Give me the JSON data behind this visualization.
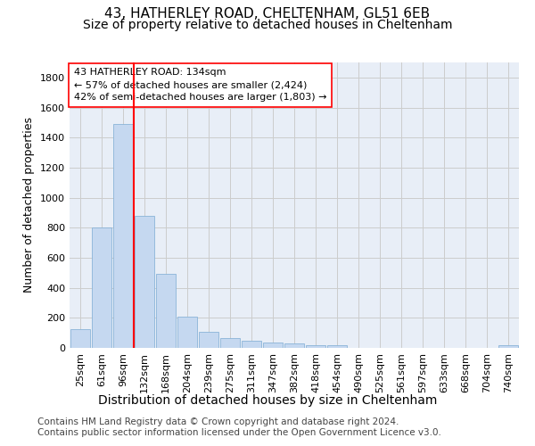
{
  "title_line1": "43, HATHERLEY ROAD, CHELTENHAM, GL51 6EB",
  "title_line2": "Size of property relative to detached houses in Cheltenham",
  "xlabel": "Distribution of detached houses by size in Cheltenham",
  "ylabel": "Number of detached properties",
  "categories": [
    "25sqm",
    "61sqm",
    "96sqm",
    "132sqm",
    "168sqm",
    "204sqm",
    "239sqm",
    "275sqm",
    "311sqm",
    "347sqm",
    "382sqm",
    "418sqm",
    "454sqm",
    "490sqm",
    "525sqm",
    "561sqm",
    "597sqm",
    "633sqm",
    "668sqm",
    "704sqm",
    "740sqm"
  ],
  "values": [
    125,
    800,
    1490,
    880,
    490,
    205,
    105,
    65,
    45,
    35,
    30,
    20,
    15,
    0,
    0,
    0,
    0,
    0,
    0,
    0,
    15
  ],
  "bar_color": "#c5d8f0",
  "bar_edge_color": "#8ab4d8",
  "property_line_index": 3,
  "property_line_color": "red",
  "annotation_text": "43 HATHERLEY ROAD: 134sqm\n← 57% of detached houses are smaller (2,424)\n42% of semi-detached houses are larger (1,803) →",
  "annotation_box_color": "white",
  "annotation_box_edge_color": "red",
  "ylim": [
    0,
    1900
  ],
  "yticks": [
    0,
    200,
    400,
    600,
    800,
    1000,
    1200,
    1400,
    1600,
    1800
  ],
  "grid_color": "#cccccc",
  "plot_bg_color": "#e8eef7",
  "footer_line1": "Contains HM Land Registry data © Crown copyright and database right 2024.",
  "footer_line2": "Contains public sector information licensed under the Open Government Licence v3.0.",
  "title1_fontsize": 11,
  "title2_fontsize": 10,
  "xlabel_fontsize": 10,
  "ylabel_fontsize": 9,
  "tick_fontsize": 8,
  "annotation_fontsize": 8,
  "footer_fontsize": 7.5
}
